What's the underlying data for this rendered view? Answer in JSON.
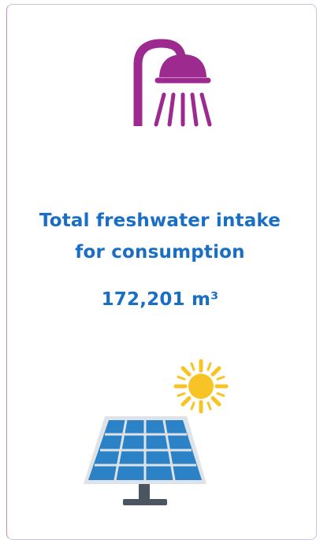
{
  "card": {
    "title_lines": [
      "Total freshwater intake",
      "for consumption"
    ],
    "value": "172,201 m³"
  }
}
